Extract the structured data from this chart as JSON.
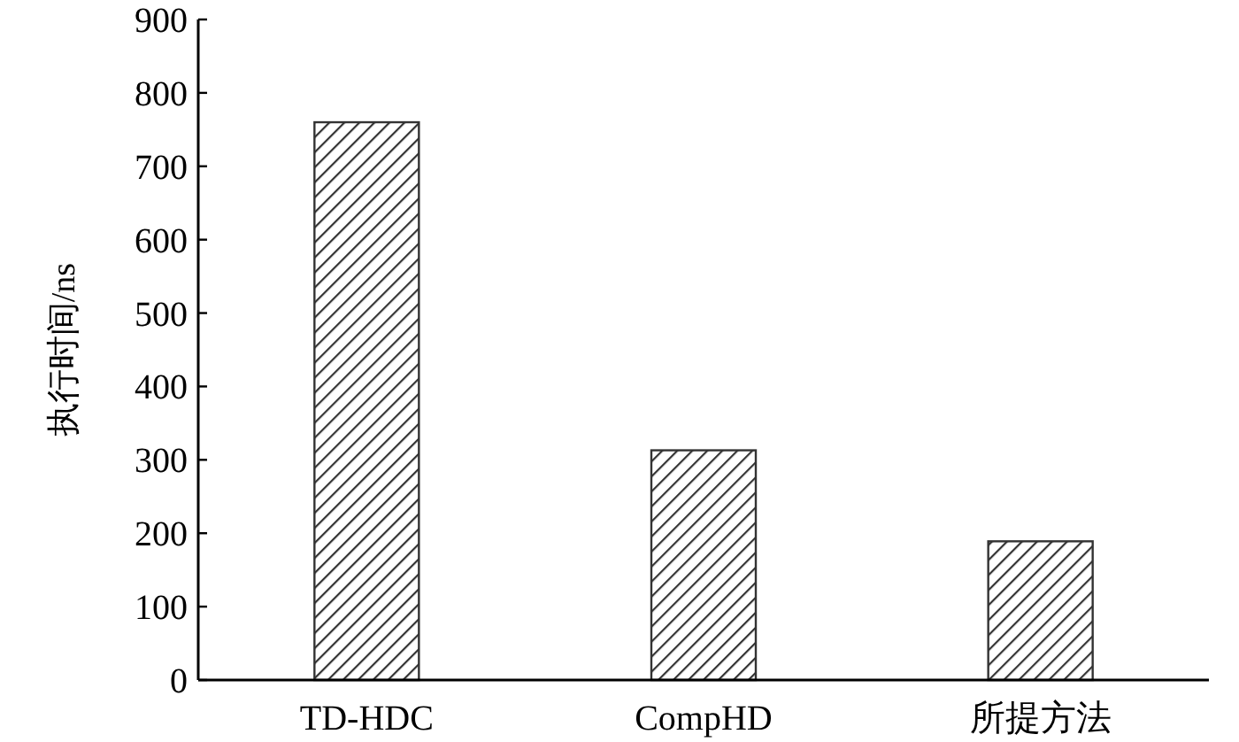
{
  "chart_data": {
    "type": "bar",
    "ylabel": "执行时间/ns",
    "categories": [
      "TD-HDC",
      "CompHD",
      "所提方法"
    ],
    "values": [
      760,
      313,
      189
    ],
    "color": "#333333",
    "ylim": [
      0,
      900
    ],
    "yticks": [
      0,
      100,
      200,
      300,
      400,
      500,
      600,
      700,
      800,
      900
    ],
    "grid": false
  }
}
